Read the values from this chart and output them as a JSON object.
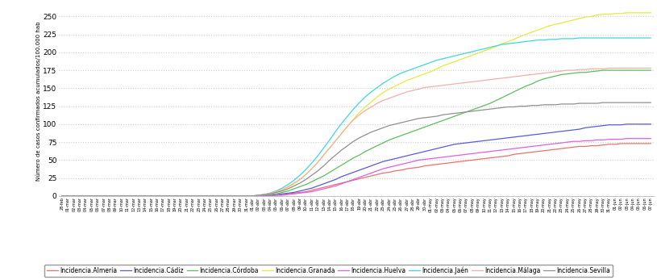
{
  "ylabel": "Número de casos confirmados acumulados/100.000 hab",
  "ylim": [
    0,
    265
  ],
  "yticks": [
    0,
    25,
    50,
    75,
    100,
    125,
    150,
    175,
    200,
    225,
    250
  ],
  "background_color": "#ffffff",
  "grid_color": "#d0d0d0",
  "series_colors": {
    "Incidencia.Almería": "#e8736e",
    "Incidencia.Cádiz": "#5a5adc",
    "Incidencia.Córdoba": "#5cbf5c",
    "Incidencia.Granada": "#e8e840",
    "Incidencia.Huelva": "#e060e0",
    "Incidencia.Jaén": "#40d8d8",
    "Incidencia.Málaga": "#f0b0a8",
    "Incidencia.Sevilla": "#909090"
  },
  "x_dates": [
    "28-feb",
    "01-mar",
    "02-mar",
    "03-mar",
    "04-mar",
    "05-mar",
    "06-mar",
    "07-mar",
    "08-mar",
    "09-mar",
    "10-mar",
    "11-mar",
    "12-mar",
    "13-mar",
    "14-mar",
    "15-mar",
    "16-mar",
    "17-mar",
    "18-mar",
    "19-mar",
    "20-mar",
    "21-mar",
    "22-mar",
    "23-mar",
    "24-mar",
    "25-mar",
    "26-mar",
    "27-mar",
    "28-mar",
    "29-mar",
    "30-mar",
    "31-mar",
    "01-abr",
    "02-abr",
    "03-abr",
    "04-abr",
    "05-abr",
    "06-abr",
    "07-abr",
    "08-abr",
    "09-abr",
    "10-abr",
    "11-abr",
    "12-abr",
    "13-abr",
    "14-abr",
    "15-abr",
    "16-abr",
    "17-abr",
    "18-abr",
    "19-abr",
    "20-abr",
    "21-abr",
    "22-abr",
    "23-abr",
    "24-abr",
    "25-abr",
    "26-abr",
    "27-abr",
    "28-abr",
    "29-abr",
    "30-abr",
    "01-may",
    "02-may",
    "03-may",
    "04-may",
    "05-may",
    "06-may",
    "07-may",
    "08-may",
    "09-may",
    "10-may",
    "11-may",
    "12-may",
    "13-may",
    "14-may",
    "15-may",
    "16-may",
    "17-may",
    "18-may",
    "19-may",
    "20-may",
    "21-may",
    "22-may",
    "23-may",
    "24-may",
    "25-may",
    "26-may",
    "27-may",
    "28-may",
    "29-may",
    "30-may",
    "31-may",
    "01-jun",
    "02-jun",
    "03-jun",
    "04-jun",
    "05-jun",
    "06-jun",
    "07-jun"
  ],
  "series_data": {
    "Incidencia.Almería": [
      0,
      0,
      0,
      0,
      0,
      0,
      0,
      0,
      0,
      0,
      0,
      0,
      0,
      0,
      0,
      0,
      0,
      0,
      0,
      0,
      0,
      0,
      0,
      0,
      0,
      0,
      0,
      0,
      0,
      0,
      0,
      0,
      0,
      0,
      0,
      1,
      1,
      2,
      3,
      4,
      5,
      6,
      8,
      10,
      12,
      14,
      16,
      18,
      20,
      22,
      24,
      26,
      28,
      30,
      32,
      33,
      35,
      36,
      38,
      39,
      40,
      42,
      43,
      44,
      45,
      46,
      47,
      48,
      49,
      50,
      51,
      52,
      53,
      54,
      55,
      56,
      58,
      59,
      60,
      61,
      62,
      63,
      64,
      65,
      66,
      67,
      68,
      69,
      69,
      70,
      70,
      71,
      72,
      72,
      73,
      73,
      73,
      73,
      73,
      73
    ],
    "Incidencia.Cádiz": [
      0,
      0,
      0,
      0,
      0,
      0,
      0,
      0,
      0,
      0,
      0,
      0,
      0,
      0,
      0,
      0,
      0,
      0,
      0,
      0,
      0,
      0,
      0,
      0,
      0,
      0,
      0,
      0,
      0,
      0,
      0,
      0,
      0,
      0,
      0,
      1,
      2,
      3,
      4,
      5,
      7,
      9,
      11,
      14,
      17,
      20,
      23,
      27,
      30,
      33,
      36,
      39,
      42,
      45,
      48,
      50,
      52,
      54,
      56,
      58,
      60,
      62,
      64,
      66,
      68,
      70,
      72,
      73,
      74,
      75,
      76,
      77,
      78,
      79,
      80,
      81,
      82,
      83,
      84,
      85,
      86,
      87,
      88,
      89,
      90,
      91,
      92,
      93,
      95,
      96,
      97,
      98,
      99,
      99,
      99,
      100,
      100,
      100,
      100,
      100
    ],
    "Incidencia.Córdoba": [
      0,
      0,
      0,
      0,
      0,
      0,
      0,
      0,
      0,
      0,
      0,
      0,
      0,
      0,
      0,
      0,
      0,
      0,
      0,
      0,
      0,
      0,
      0,
      0,
      0,
      0,
      0,
      0,
      0,
      0,
      0,
      0,
      0,
      0,
      1,
      2,
      3,
      5,
      7,
      10,
      13,
      16,
      20,
      24,
      28,
      33,
      38,
      43,
      48,
      53,
      57,
      62,
      66,
      70,
      74,
      78,
      81,
      84,
      87,
      90,
      93,
      96,
      99,
      102,
      105,
      108,
      111,
      114,
      117,
      120,
      123,
      126,
      129,
      133,
      137,
      141,
      145,
      149,
      153,
      156,
      160,
      163,
      165,
      167,
      169,
      170,
      171,
      172,
      172,
      173,
      174,
      175,
      175,
      175,
      175,
      175,
      175,
      175,
      175,
      175
    ],
    "Incidencia.Granada": [
      0,
      0,
      0,
      0,
      0,
      0,
      0,
      0,
      0,
      0,
      0,
      0,
      0,
      0,
      0,
      0,
      0,
      0,
      0,
      0,
      0,
      0,
      0,
      0,
      0,
      0,
      0,
      0,
      0,
      0,
      0,
      0,
      0,
      1,
      2,
      3,
      5,
      8,
      12,
      17,
      23,
      30,
      38,
      47,
      57,
      67,
      77,
      87,
      97,
      107,
      116,
      124,
      131,
      138,
      144,
      149,
      153,
      157,
      161,
      164,
      167,
      170,
      173,
      177,
      181,
      184,
      187,
      190,
      193,
      196,
      199,
      202,
      205,
      208,
      212,
      215,
      218,
      222,
      225,
      228,
      231,
      234,
      237,
      239,
      241,
      243,
      245,
      247,
      249,
      250,
      252,
      253,
      253,
      254,
      254,
      255,
      255,
      255,
      255,
      255
    ],
    "Incidencia.Huelva": [
      0,
      0,
      0,
      0,
      0,
      0,
      0,
      0,
      0,
      0,
      0,
      0,
      0,
      0,
      0,
      0,
      0,
      0,
      0,
      0,
      0,
      0,
      0,
      0,
      0,
      0,
      0,
      0,
      0,
      0,
      0,
      0,
      0,
      0,
      0,
      0,
      1,
      1,
      2,
      3,
      4,
      5,
      6,
      8,
      10,
      12,
      14,
      17,
      20,
      23,
      26,
      29,
      32,
      35,
      38,
      40,
      42,
      44,
      46,
      48,
      50,
      51,
      52,
      53,
      54,
      55,
      56,
      57,
      58,
      59,
      60,
      61,
      62,
      63,
      64,
      65,
      66,
      67,
      68,
      69,
      70,
      71,
      72,
      73,
      74,
      75,
      76,
      76,
      77,
      77,
      78,
      78,
      79,
      79,
      79,
      80,
      80,
      80,
      80,
      80
    ],
    "Incidencia.Jaén": [
      0,
      0,
      0,
      0,
      0,
      0,
      0,
      0,
      0,
      0,
      0,
      0,
      0,
      0,
      0,
      0,
      0,
      0,
      0,
      0,
      0,
      0,
      0,
      0,
      0,
      0,
      0,
      0,
      0,
      0,
      0,
      0,
      0,
      1,
      2,
      4,
      7,
      11,
      16,
      22,
      29,
      37,
      46,
      56,
      67,
      78,
      90,
      101,
      111,
      121,
      130,
      138,
      145,
      151,
      157,
      162,
      167,
      171,
      174,
      177,
      180,
      183,
      186,
      189,
      191,
      193,
      195,
      197,
      199,
      201,
      203,
      205,
      207,
      209,
      211,
      212,
      213,
      214,
      215,
      216,
      217,
      217,
      218,
      218,
      219,
      219,
      219,
      220,
      220,
      220,
      220,
      220,
      220,
      220,
      220,
      220,
      220,
      220,
      220,
      220
    ],
    "Incidencia.Málaga": [
      0,
      0,
      0,
      0,
      0,
      0,
      0,
      0,
      0,
      0,
      0,
      0,
      0,
      0,
      0,
      0,
      0,
      0,
      0,
      0,
      0,
      0,
      0,
      0,
      0,
      0,
      0,
      0,
      0,
      0,
      0,
      0,
      0,
      1,
      2,
      4,
      6,
      9,
      13,
      18,
      23,
      30,
      38,
      47,
      57,
      67,
      77,
      87,
      97,
      106,
      113,
      119,
      124,
      129,
      133,
      136,
      139,
      142,
      145,
      147,
      149,
      151,
      152,
      153,
      154,
      155,
      156,
      157,
      158,
      159,
      160,
      161,
      162,
      163,
      164,
      165,
      166,
      167,
      168,
      169,
      170,
      171,
      172,
      173,
      174,
      175,
      175,
      176,
      176,
      177,
      177,
      177,
      178,
      178,
      178,
      178,
      178,
      178,
      178,
      178
    ],
    "Incidencia.Sevilla": [
      0,
      0,
      0,
      0,
      0,
      0,
      0,
      0,
      0,
      0,
      0,
      0,
      0,
      0,
      0,
      0,
      0,
      0,
      0,
      0,
      0,
      0,
      0,
      0,
      0,
      0,
      0,
      0,
      0,
      0,
      0,
      0,
      0,
      1,
      2,
      3,
      5,
      7,
      10,
      14,
      18,
      23,
      29,
      35,
      42,
      50,
      57,
      64,
      70,
      76,
      81,
      85,
      89,
      92,
      95,
      98,
      100,
      102,
      104,
      106,
      108,
      109,
      110,
      111,
      113,
      114,
      115,
      116,
      117,
      118,
      119,
      120,
      121,
      122,
      123,
      124,
      124,
      125,
      125,
      126,
      126,
      127,
      127,
      127,
      128,
      128,
      128,
      129,
      129,
      129,
      129,
      130,
      130,
      130,
      130,
      130,
      130,
      130,
      130,
      130
    ]
  }
}
